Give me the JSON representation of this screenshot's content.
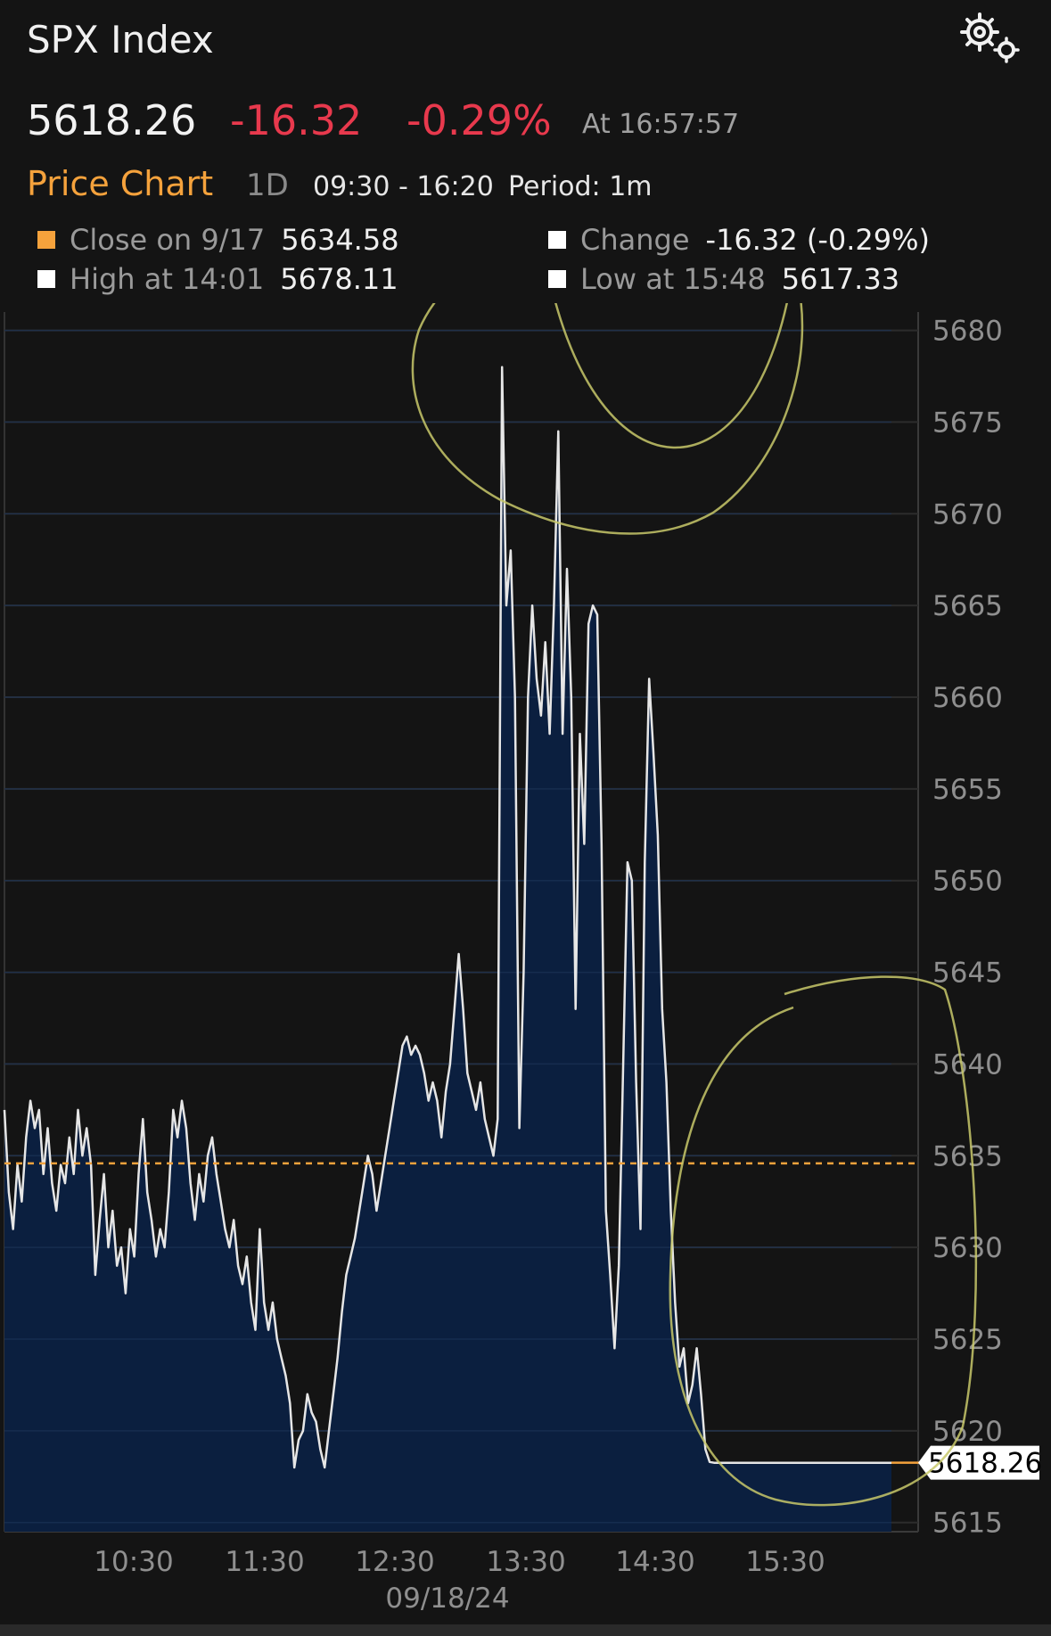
{
  "header": {
    "title": "SPX Index",
    "settings_icon": "gears-icon"
  },
  "quote": {
    "last": "5618.26",
    "change": "-16.32",
    "change_pct": "-0.29%",
    "time": "At 16:57:57"
  },
  "subheader": {
    "title": "Price Chart",
    "range": "1D",
    "hours": "09:30 - 16:20",
    "period": "Period: 1m"
  },
  "stats": {
    "close": {
      "label": "Close on 9/17",
      "value": "5634.58"
    },
    "change": {
      "label": "Change",
      "value": "-16.32 (-0.29%)"
    },
    "high": {
      "label": "High at 14:01",
      "value": "5678.11"
    },
    "low": {
      "label": "Low at 15:48",
      "value": "5617.33"
    }
  },
  "colors": {
    "accent": "#f5a23c",
    "negative": "#e8394d",
    "area_fill": "#0b1f3f",
    "line": "#e6e6e6",
    "annotation": "#c8c86a"
  },
  "chart_data": {
    "type": "area",
    "x_tick_labels": [
      "10:30",
      "11:30",
      "12:30",
      "13:30",
      "14:30",
      "15:30"
    ],
    "xlabel": "09/18/24",
    "x_range": [
      "09:30",
      "16:20"
    ],
    "ylim": [
      5614.5,
      5681
    ],
    "y_ticks": [
      5615,
      5620,
      5625,
      5630,
      5635,
      5640,
      5645,
      5650,
      5655,
      5660,
      5665,
      5670,
      5675,
      5680
    ],
    "previous_close": 5634.58,
    "last_value": "5618.26",
    "grid": true,
    "annotations": [
      "hand-drawn ellipse around 13:55–14:45 peaks",
      "hand-drawn ellipse around 15:00–16:20 decline"
    ],
    "series": [
      {
        "points": [
          [
            "09:30",
            5637.5
          ],
          [
            "09:32",
            5633
          ],
          [
            "09:34",
            5631
          ],
          [
            "09:36",
            5634.5
          ],
          [
            "09:38",
            5632.5
          ],
          [
            "09:40",
            5636
          ],
          [
            "09:42",
            5638
          ],
          [
            "09:44",
            5636.5
          ],
          [
            "09:46",
            5637.5
          ],
          [
            "09:48",
            5634
          ],
          [
            "09:50",
            5636.5
          ],
          [
            "09:52",
            5633.5
          ],
          [
            "09:54",
            5632
          ],
          [
            "09:56",
            5634.5
          ],
          [
            "09:58",
            5633.5
          ],
          [
            "10:00",
            5636
          ],
          [
            "10:02",
            5634
          ],
          [
            "10:04",
            5637.5
          ],
          [
            "10:06",
            5635
          ],
          [
            "10:08",
            5636.5
          ],
          [
            "10:10",
            5634.5
          ],
          [
            "10:12",
            5628.5
          ],
          [
            "10:14",
            5631.5
          ],
          [
            "10:16",
            5634
          ],
          [
            "10:18",
            5630
          ],
          [
            "10:20",
            5632
          ],
          [
            "10:22",
            5629
          ],
          [
            "10:24",
            5630
          ],
          [
            "10:26",
            5627.5
          ],
          [
            "10:28",
            5631
          ],
          [
            "10:30",
            5629.5
          ],
          [
            "10:32",
            5634
          ],
          [
            "10:34",
            5637
          ],
          [
            "10:36",
            5633
          ],
          [
            "10:38",
            5631.5
          ],
          [
            "10:40",
            5629.5
          ],
          [
            "10:42",
            5631
          ],
          [
            "10:44",
            5630
          ],
          [
            "10:46",
            5633
          ],
          [
            "10:48",
            5637.5
          ],
          [
            "10:50",
            5636
          ],
          [
            "10:52",
            5638
          ],
          [
            "10:54",
            5636.5
          ],
          [
            "10:56",
            5633.5
          ],
          [
            "10:58",
            5631.5
          ],
          [
            "11:00",
            5634
          ],
          [
            "11:02",
            5632.5
          ],
          [
            "11:04",
            5635
          ],
          [
            "11:06",
            5636
          ],
          [
            "11:08",
            5634
          ],
          [
            "11:10",
            5632.5
          ],
          [
            "11:12",
            5631
          ],
          [
            "11:14",
            5630
          ],
          [
            "11:16",
            5631.5
          ],
          [
            "11:18",
            5629
          ],
          [
            "11:20",
            5628
          ],
          [
            "11:22",
            5629.5
          ],
          [
            "11:24",
            5627
          ],
          [
            "11:26",
            5625.5
          ],
          [
            "11:28",
            5631
          ],
          [
            "11:30",
            5627
          ],
          [
            "11:32",
            5625.5
          ],
          [
            "11:34",
            5627
          ],
          [
            "11:36",
            5625
          ],
          [
            "11:38",
            5624
          ],
          [
            "11:40",
            5623
          ],
          [
            "11:42",
            5621.5
          ],
          [
            "11:44",
            5618
          ],
          [
            "11:46",
            5619.5
          ],
          [
            "11:48",
            5620
          ],
          [
            "11:50",
            5622
          ],
          [
            "11:52",
            5621
          ],
          [
            "11:54",
            5620.5
          ],
          [
            "11:56",
            5619
          ],
          [
            "11:58",
            5618
          ],
          [
            "12:00",
            5620
          ],
          [
            "12:02",
            5622
          ],
          [
            "12:04",
            5624
          ],
          [
            "12:06",
            5626.5
          ],
          [
            "12:08",
            5628.5
          ],
          [
            "12:10",
            5629.5
          ],
          [
            "12:12",
            5630.5
          ],
          [
            "12:14",
            5632
          ],
          [
            "12:16",
            5633.5
          ],
          [
            "12:18",
            5635
          ],
          [
            "12:20",
            5634
          ],
          [
            "12:22",
            5632
          ],
          [
            "12:24",
            5633.5
          ],
          [
            "12:26",
            5635
          ],
          [
            "12:28",
            5636.5
          ],
          [
            "12:30",
            5638
          ],
          [
            "12:32",
            5639.5
          ],
          [
            "12:34",
            5641
          ],
          [
            "12:36",
            5641.5
          ],
          [
            "12:38",
            5640.5
          ],
          [
            "12:40",
            5641
          ],
          [
            "12:42",
            5640.5
          ],
          [
            "12:44",
            5639.5
          ],
          [
            "12:46",
            5638
          ],
          [
            "12:48",
            5639
          ],
          [
            "12:50",
            5638
          ],
          [
            "12:52",
            5636
          ],
          [
            "12:54",
            5638.5
          ],
          [
            "12:56",
            5640
          ],
          [
            "12:58",
            5643
          ],
          [
            "13:00",
            5646
          ],
          [
            "13:02",
            5643
          ],
          [
            "13:04",
            5639.5
          ],
          [
            "13:06",
            5638.5
          ],
          [
            "13:08",
            5637.5
          ],
          [
            "13:10",
            5639
          ],
          [
            "13:12",
            5637
          ],
          [
            "13:14",
            5636
          ],
          [
            "13:16",
            5635
          ],
          [
            "13:18",
            5637
          ],
          [
            "13:20",
            5678
          ],
          [
            "13:22",
            5665
          ],
          [
            "13:24",
            5668
          ],
          [
            "13:26",
            5660
          ],
          [
            "13:28",
            5636.5
          ],
          [
            "13:30",
            5645
          ],
          [
            "13:32",
            5660
          ],
          [
            "13:34",
            5665
          ],
          [
            "13:36",
            5661
          ],
          [
            "13:38",
            5659
          ],
          [
            "13:40",
            5663
          ],
          [
            "13:42",
            5658
          ],
          [
            "13:44",
            5665
          ],
          [
            "13:46",
            5674.5
          ],
          [
            "13:48",
            5658
          ],
          [
            "13:50",
            5667
          ],
          [
            "13:52",
            5660
          ],
          [
            "13:54",
            5643
          ],
          [
            "13:56",
            5658
          ],
          [
            "13:58",
            5652
          ],
          [
            "14:00",
            5664
          ],
          [
            "14:02",
            5665
          ],
          [
            "14:04",
            5664.5
          ],
          [
            "14:06",
            5652
          ],
          [
            "14:08",
            5632
          ],
          [
            "14:10",
            5628.5
          ],
          [
            "14:12",
            5624.5
          ],
          [
            "14:14",
            5629
          ],
          [
            "14:16",
            5640
          ],
          [
            "14:18",
            5651
          ],
          [
            "14:20",
            5650
          ],
          [
            "14:22",
            5639
          ],
          [
            "14:24",
            5631
          ],
          [
            "14:26",
            5651
          ],
          [
            "14:28",
            5661
          ],
          [
            "14:30",
            5657
          ],
          [
            "14:32",
            5652.5
          ],
          [
            "14:34",
            5643
          ],
          [
            "14:36",
            5639
          ],
          [
            "14:38",
            5632
          ],
          [
            "14:40",
            5627
          ],
          [
            "14:42",
            5623.5
          ],
          [
            "14:44",
            5624.5
          ],
          [
            "14:46",
            5621.5
          ],
          [
            "14:48",
            5622.5
          ],
          [
            "14:50",
            5624.5
          ],
          [
            "14:52",
            5622
          ],
          [
            "14:54",
            5619
          ],
          [
            "14:56",
            5618.3
          ],
          [
            "14:58",
            5618.26
          ],
          [
            "16:20",
            5618.26
          ]
        ]
      }
    ]
  }
}
